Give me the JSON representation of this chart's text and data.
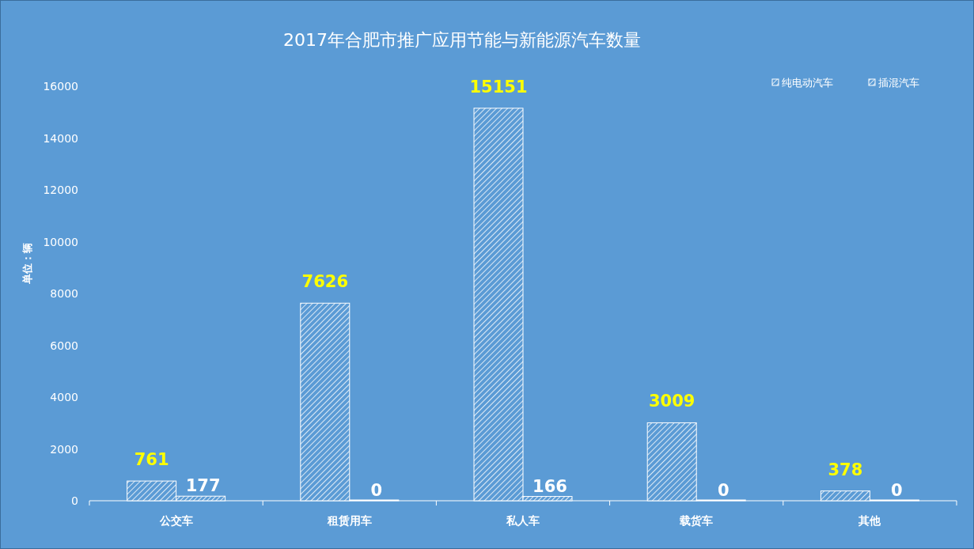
{
  "chart_data": {
    "type": "bar",
    "title": "2017年合肥市推广应用节能与新能源汽车数量",
    "ylabel": "单位：辆",
    "categories": [
      "公交车",
      "租赁用车",
      "私人车",
      "载货车",
      "其他"
    ],
    "series": [
      {
        "name": "纯电动汽车",
        "color": "#ffffff",
        "values": [
          761,
          7626,
          15151,
          3009,
          378
        ]
      },
      {
        "name": "插混汽车",
        "color": "#ffffff",
        "values": [
          177,
          0,
          166,
          0,
          0
        ]
      }
    ],
    "ylim": [
      0,
      16000
    ],
    "yticks": [
      0,
      2000,
      4000,
      6000,
      8000,
      10000,
      12000,
      14000,
      16000
    ],
    "data_labels": true,
    "legend": "top right",
    "grid": false
  }
}
